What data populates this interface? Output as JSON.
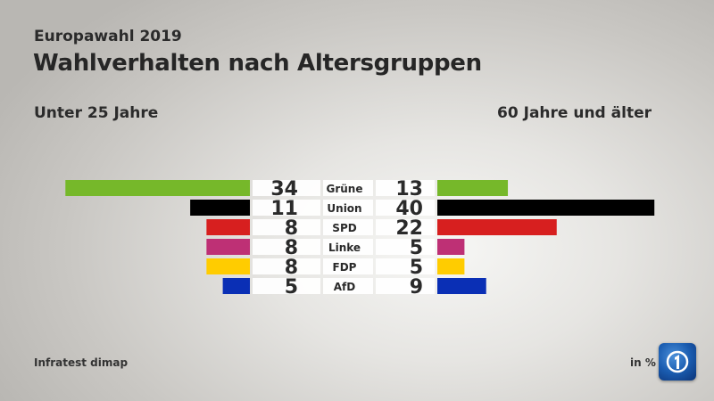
{
  "header": {
    "subtitle": "Europawahl 2019",
    "title": "Wahlverhalten nach Altersgruppen"
  },
  "groups": {
    "left": "Unter 25 Jahre",
    "right": "60 Jahre und älter"
  },
  "footer": {
    "source": "Infratest dimap",
    "unit": "in %",
    "logo_icon": "tagesschau-logo-icon"
  },
  "chart_data": {
    "type": "bar",
    "orientation": "horizontal-butterfly",
    "title": "Wahlverhalten nach Altersgruppen",
    "subtitle": "Europawahl 2019",
    "unit": "%",
    "categories": [
      "Grüne",
      "Union",
      "SPD",
      "Linke",
      "FDP",
      "AfD"
    ],
    "colors": [
      "#76b82a",
      "#000000",
      "#d71f1f",
      "#be3075",
      "#ffcc00",
      "#0a2fb5"
    ],
    "series": [
      {
        "name": "Unter 25 Jahre",
        "side": "left",
        "values": [
          34,
          11,
          8,
          8,
          8,
          5
        ]
      },
      {
        "name": "60 Jahre und älter",
        "side": "right",
        "values": [
          13,
          40,
          22,
          5,
          5,
          9
        ]
      }
    ],
    "xlim": [
      0,
      40
    ],
    "grid": false,
    "legend": "none",
    "source": "Infratest dimap"
  }
}
